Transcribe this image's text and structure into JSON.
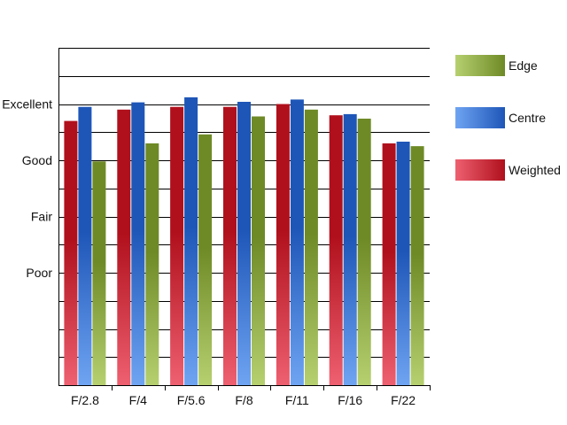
{
  "chart_data": {
    "type": "bar",
    "categories": [
      "F/2.8",
      "F/4",
      "F/5.6",
      "F/8",
      "F/11",
      "F/16",
      "F/22"
    ],
    "y_tick_labels": [
      {
        "label": "Poor",
        "value": 2
      },
      {
        "label": "Fair",
        "value": 3
      },
      {
        "label": "Good",
        "value": 4
      },
      {
        "label": "Excellent",
        "value": 5
      }
    ],
    "ylim": [
      0,
      6
    ],
    "grid_step": 0.5,
    "series": [
      {
        "name": "Weighted",
        "color_dark": "#b0101c",
        "color_light": "#ee6070",
        "values": [
          4.7,
          4.9,
          4.95,
          4.95,
          5.0,
          4.8,
          4.3
        ]
      },
      {
        "name": "Centre",
        "color_dark": "#1e56b8",
        "color_light": "#6fa4f2",
        "values": [
          4.95,
          5.03,
          5.12,
          5.04,
          5.08,
          4.82,
          4.33
        ]
      },
      {
        "name": "Edge",
        "color_dark": "#6e8a26",
        "color_light": "#b6d070",
        "values": [
          3.98,
          4.3,
          4.46,
          4.78,
          4.9,
          4.74,
          4.25
        ]
      }
    ],
    "legend_order": [
      "Edge",
      "Centre",
      "Weighted"
    ],
    "legend_position": "right",
    "grid": true,
    "title": "",
    "xlabel": "",
    "ylabel": ""
  }
}
